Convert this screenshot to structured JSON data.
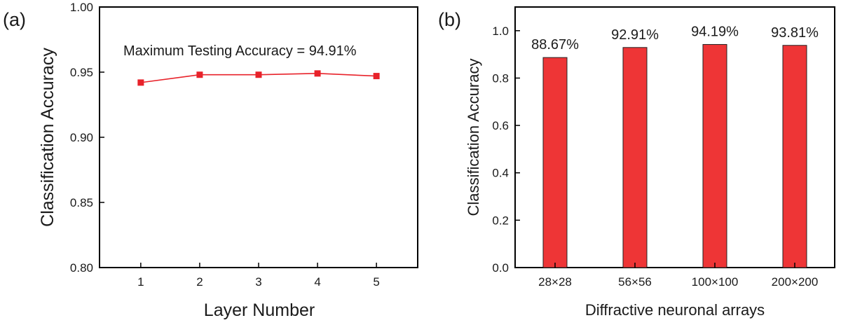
{
  "chart_data": [
    {
      "type": "line",
      "panel_label": "(a)",
      "xlabel": "Layer Number",
      "ylabel": "Classification Accuracy",
      "x": [
        1,
        2,
        3,
        4,
        5
      ],
      "series": [
        {
          "values": [
            0.942,
            0.948,
            0.948,
            0.949,
            0.947
          ],
          "color": "#e8222a"
        }
      ],
      "xlim": [
        0.3,
        5.7
      ],
      "ylim": [
        0.8,
        1.0
      ],
      "xticks": [
        1,
        2,
        3,
        4,
        5
      ],
      "yticks": [
        "0.80",
        "0.85",
        "0.90",
        "0.95",
        "1.00"
      ],
      "annotation": "Maximum Testing Accuracy = 94.91%",
      "grid": false
    },
    {
      "type": "bar",
      "panel_label": "(b)",
      "xlabel": "Diffractive neuronal arrays",
      "ylabel": "Classification Accuracy",
      "categories": [
        "28×28",
        "56×56",
        "100×100",
        "200×200"
      ],
      "values": [
        0.8867,
        0.9291,
        0.9419,
        0.9381
      ],
      "data_labels": [
        "88.67%",
        "92.91%",
        "94.19%",
        "93.81%"
      ],
      "ylim": [
        0,
        1.1
      ],
      "yticks": [
        "0.0",
        "0.2",
        "0.4",
        "0.6",
        "0.8",
        "1.0"
      ],
      "color": "#ee3536",
      "grid": false
    }
  ]
}
